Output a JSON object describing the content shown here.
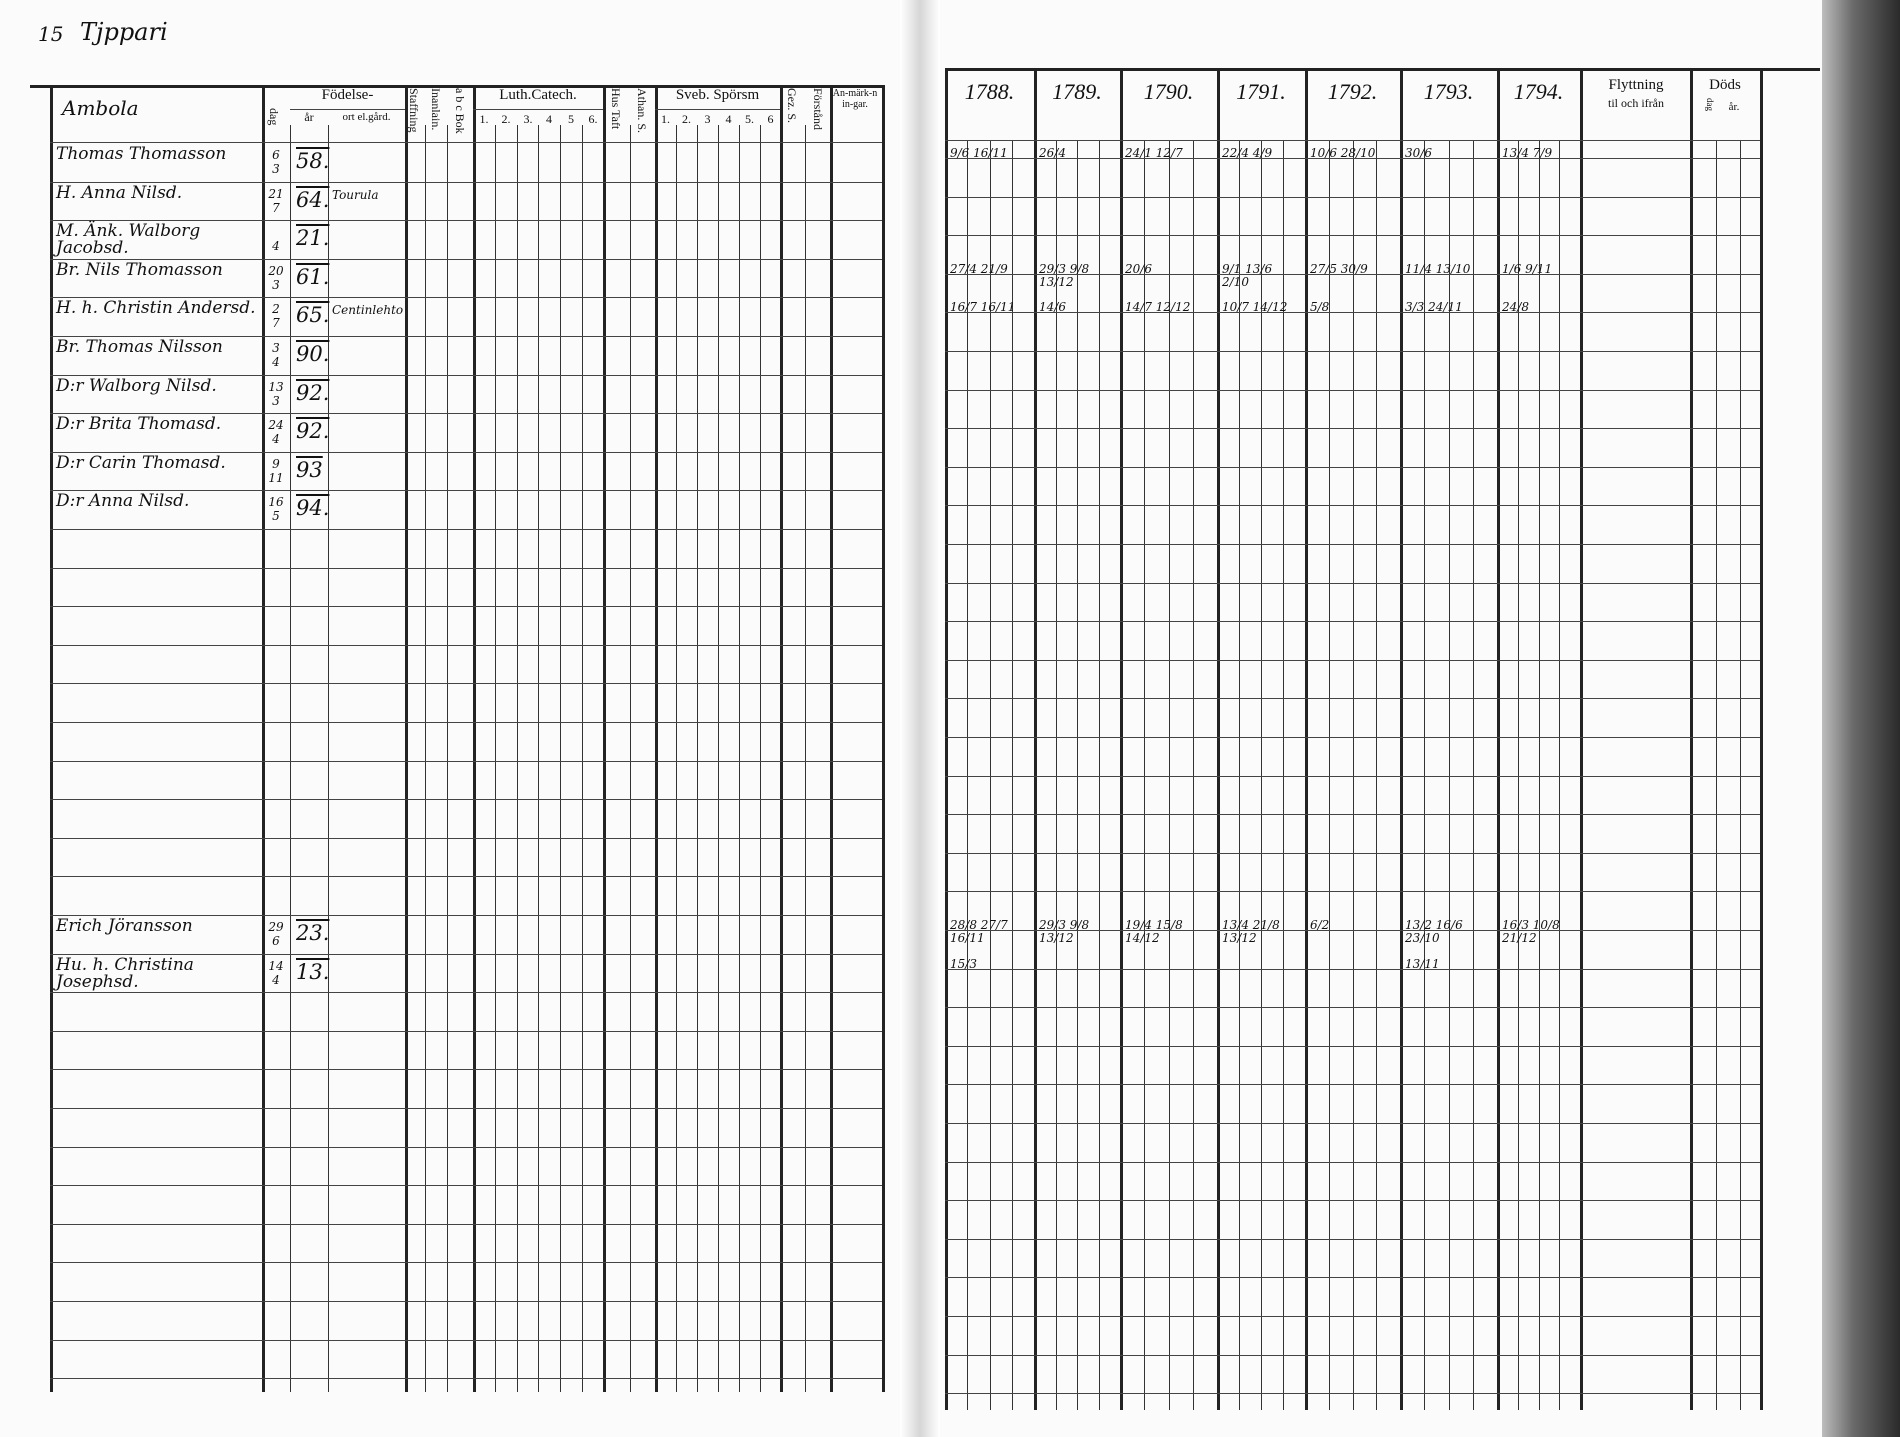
{
  "page": {
    "number": "15",
    "place": "Tjppari"
  },
  "left_header": {
    "name_col": "Ambola",
    "fodelse": "Födelse-",
    "dag": "dag",
    "ar": "år",
    "ort": "ort el.gård.",
    "staffning": "Staffning",
    "inanlain": "Inanlain.",
    "abc_bok": "a b c Bok",
    "luth_catech": "Luth.Catech.",
    "luth_sub": [
      "1.",
      "2.",
      "3.",
      "4",
      "5",
      "6."
    ],
    "hus_taft": "Hus Taft",
    "athan": "Athan. S.",
    "sveb_sporsm": "Sveb. Spörsm",
    "sveb_sub": [
      "1.",
      "2.",
      "3",
      "4",
      "5.",
      "6"
    ],
    "gez": "Gez. S.",
    "forstand": "Förstånd",
    "anmarkningar": "An-märk-nin-gar."
  },
  "right_header": {
    "years": [
      "1788.",
      "1789.",
      "1790.",
      "1791.",
      "1792.",
      "1793.",
      "1794."
    ],
    "flyttning": "Flyttning",
    "flyttning_sub": "til och ifrån",
    "dods": "Döds",
    "dods_sub_dag": "dag",
    "dods_sub_ar": "år."
  },
  "rows": [
    {
      "row": 0,
      "name": "Thomas Thomasson",
      "dag": [
        "6",
        "3"
      ],
      "ar": "58.",
      "ort": "",
      "marks": [
        "9/6 16/11",
        "26/4",
        "24/1 12/7",
        "22/4 4/9",
        "10/6 28/10",
        "30/6",
        "13/4 7/9"
      ]
    },
    {
      "row": 1,
      "name": "H. Anna Nilsd.",
      "dag": [
        "21",
        "7"
      ],
      "ar": "64.",
      "ort": "Tourula",
      "marks": [
        "",
        "",
        "",
        "",
        "",
        "",
        ""
      ]
    },
    {
      "row": 2,
      "name": "M. Änk. Walborg Jacobsd.",
      "dag": [
        "",
        "4"
      ],
      "ar": "21.",
      "ort": "",
      "marks": [
        "",
        "",
        "",
        "",
        "",
        "",
        ""
      ]
    },
    {
      "row": 3,
      "name": "Br. Nils Thomasson",
      "dag": [
        "20",
        "3"
      ],
      "ar": "61.",
      "ort": "",
      "marks": [
        "27/4 21/9",
        "29/3 9/8 13/12",
        "20/6",
        "9/1 13/6 2/10",
        "27/5 30/9",
        "11/4 13/10",
        "1/6 9/11"
      ]
    },
    {
      "row": 4,
      "name": "H. h. Christin Andersd.",
      "dag": [
        "2",
        "7"
      ],
      "ar": "65.",
      "ort": "Centinlehto",
      "marks": [
        "16/7 16/11",
        "14/6",
        "14/7 12/12",
        "10/7 14/12",
        "5/8",
        "3/3 24/11",
        "24/8"
      ]
    },
    {
      "row": 5,
      "name": "Br. Thomas Nilsson",
      "dag": [
        "3",
        "4"
      ],
      "ar": "90.",
      "ort": "",
      "marks": [
        "",
        "",
        "",
        "",
        "",
        "",
        ""
      ]
    },
    {
      "row": 6,
      "name": "D:r Walborg Nilsd.",
      "dag": [
        "13",
        "3"
      ],
      "ar": "92.",
      "ort": "",
      "marks": [
        "",
        "",
        "",
        "",
        "",
        "",
        ""
      ]
    },
    {
      "row": 7,
      "name": "D:r Brita Thomasd.",
      "dag": [
        "24",
        "4"
      ],
      "ar": "92.",
      "ort": "",
      "marks": [
        "",
        "",
        "",
        "",
        "",
        "",
        ""
      ]
    },
    {
      "row": 8,
      "name": "D:r Carin Thomasd.",
      "dag": [
        "9",
        "11"
      ],
      "ar": "93",
      "ort": "",
      "marks": [
        "",
        "",
        "",
        "",
        "",
        "",
        ""
      ]
    },
    {
      "row": 9,
      "name": "D:r Anna Nilsd.",
      "dag": [
        "16",
        "5"
      ],
      "ar": "94.",
      "ort": "",
      "marks": [
        "",
        "",
        "",
        "",
        "",
        "",
        ""
      ]
    },
    {
      "row": 20,
      "name": "Erich Jöransson",
      "dag": [
        "29",
        "6"
      ],
      "ar": "23.",
      "ort": "",
      "marks": [
        "28/8 27/7 16/11",
        "29/3 9/8 13/12",
        "19/4 15/8 14/12",
        "13/4 21/8 13/12",
        "6/2",
        "13/2 16/6 23/10",
        "16/3 10/8 21/12"
      ]
    },
    {
      "row": 21,
      "name": "Hu. h. Christina Josephsd.",
      "dag": [
        "14",
        "4"
      ],
      "ar": "13.",
      "ort": "",
      "marks": [
        "15/3",
        "",
        "",
        "",
        "",
        "13/11",
        ""
      ]
    }
  ]
}
